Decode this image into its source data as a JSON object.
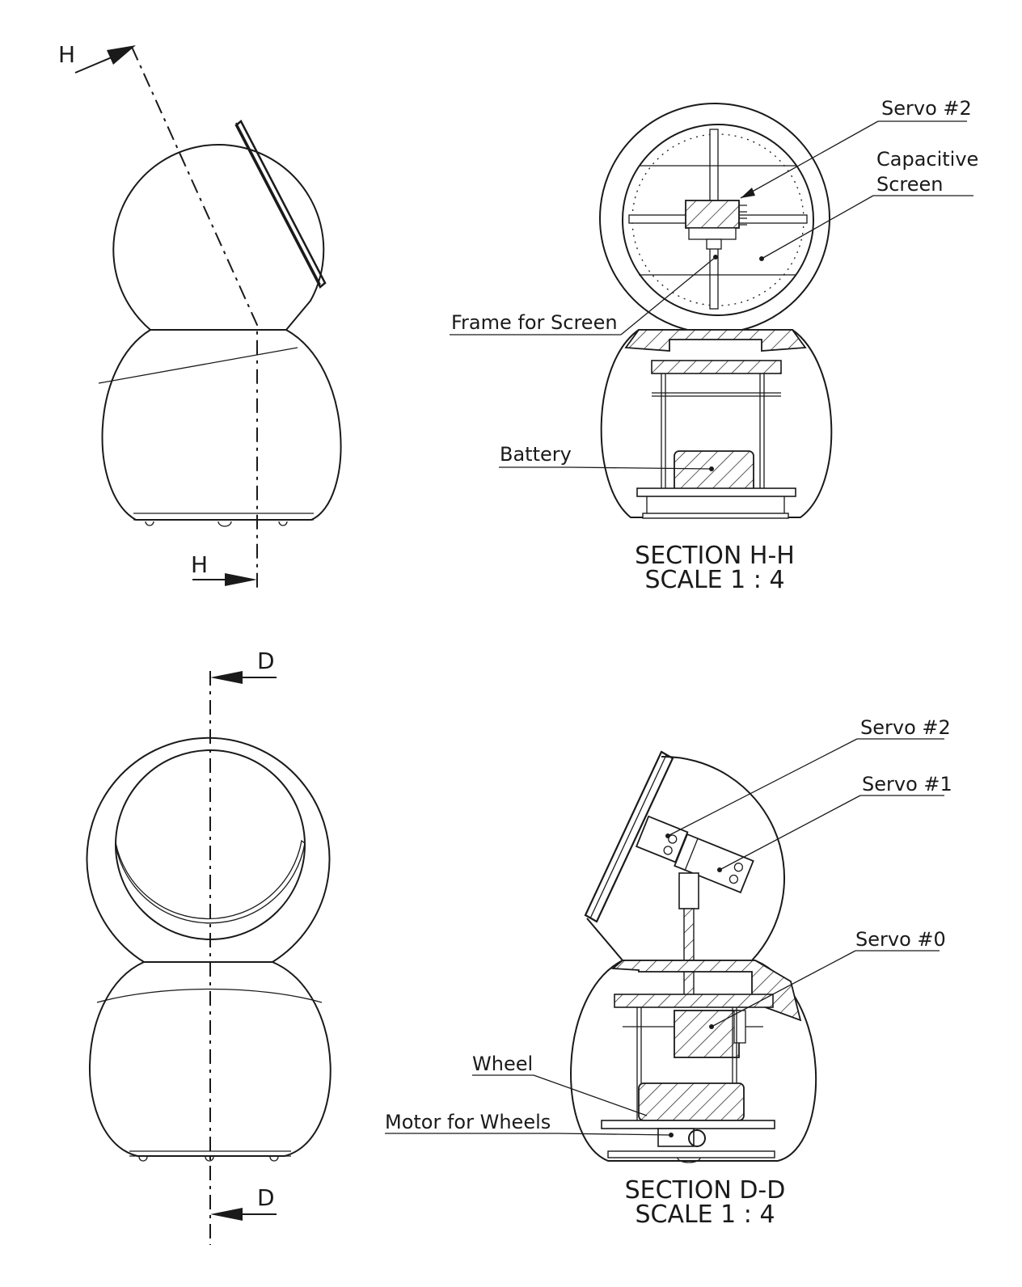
{
  "view_markers": {
    "h_top": "H",
    "h_bottom": "H",
    "d_top": "D",
    "d_bottom": "D"
  },
  "section_hh": {
    "title": "SECTION H-H",
    "scale": "SCALE 1 : 4",
    "labels": {
      "servo2": "Servo #2",
      "capacitive_line1": "Capacitive",
      "capacitive_line2": "Screen",
      "frame": "Frame for Screen",
      "battery": "Battery"
    }
  },
  "section_dd": {
    "title": "SECTION D-D",
    "scale": "SCALE 1 : 4",
    "labels": {
      "servo2": "Servo #2",
      "servo1": "Servo #1",
      "servo0": "Servo #0",
      "wheel": "Wheel",
      "motor": "Motor for Wheels"
    }
  }
}
